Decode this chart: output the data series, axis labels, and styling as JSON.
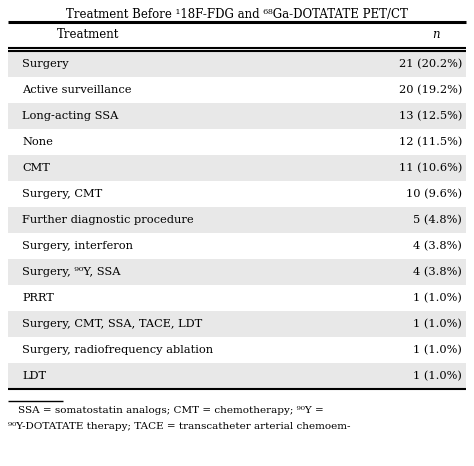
{
  "title": "Treatment Before ¹18F-FDG and ⁶⁸Ga-DOTATATE PET/CT",
  "header_col1": "Treatment",
  "header_col2": "n",
  "rows": [
    [
      "Surgery",
      "21 (20.2%)"
    ],
    [
      "Active surveillance",
      "20 (19.2%)"
    ],
    [
      "Long-acting SSA",
      "13 (12.5%)"
    ],
    [
      "None",
      "12 (11.5%)"
    ],
    [
      "CMT",
      "11 (10.6%)"
    ],
    [
      "Surgery, CMT",
      "10 (9.6%)"
    ],
    [
      "Further diagnostic procedure",
      "5 (4.8%)"
    ],
    [
      "Surgery, interferon",
      "4 (3.8%)"
    ],
    [
      "Surgery, ⁹⁰Y, SSA",
      "4 (3.8%)"
    ],
    [
      "PRRT",
      "1 (1.0%)"
    ],
    [
      "Surgery, CMT, SSA, TACE, LDT",
      "1 (1.0%)"
    ],
    [
      "Surgery, radiofrequency ablation",
      "1 (1.0%)"
    ],
    [
      "LDT",
      "1 (1.0%)"
    ]
  ],
  "footer_line1": "SSA = somatostatin analogs; CMT = chemotherapy; ⁹⁰Y =",
  "footer_line2": "⁹⁰Y-DOTATATE therapy; TACE = transcatheter arterial chemoem-",
  "bg_gray": "#e8e8e8",
  "bg_white": "#ffffff",
  "text_color": "#000000",
  "font_size": 8.2,
  "header_font_size": 8.5,
  "title_font_size": 8.5,
  "footer_font_size": 7.5
}
